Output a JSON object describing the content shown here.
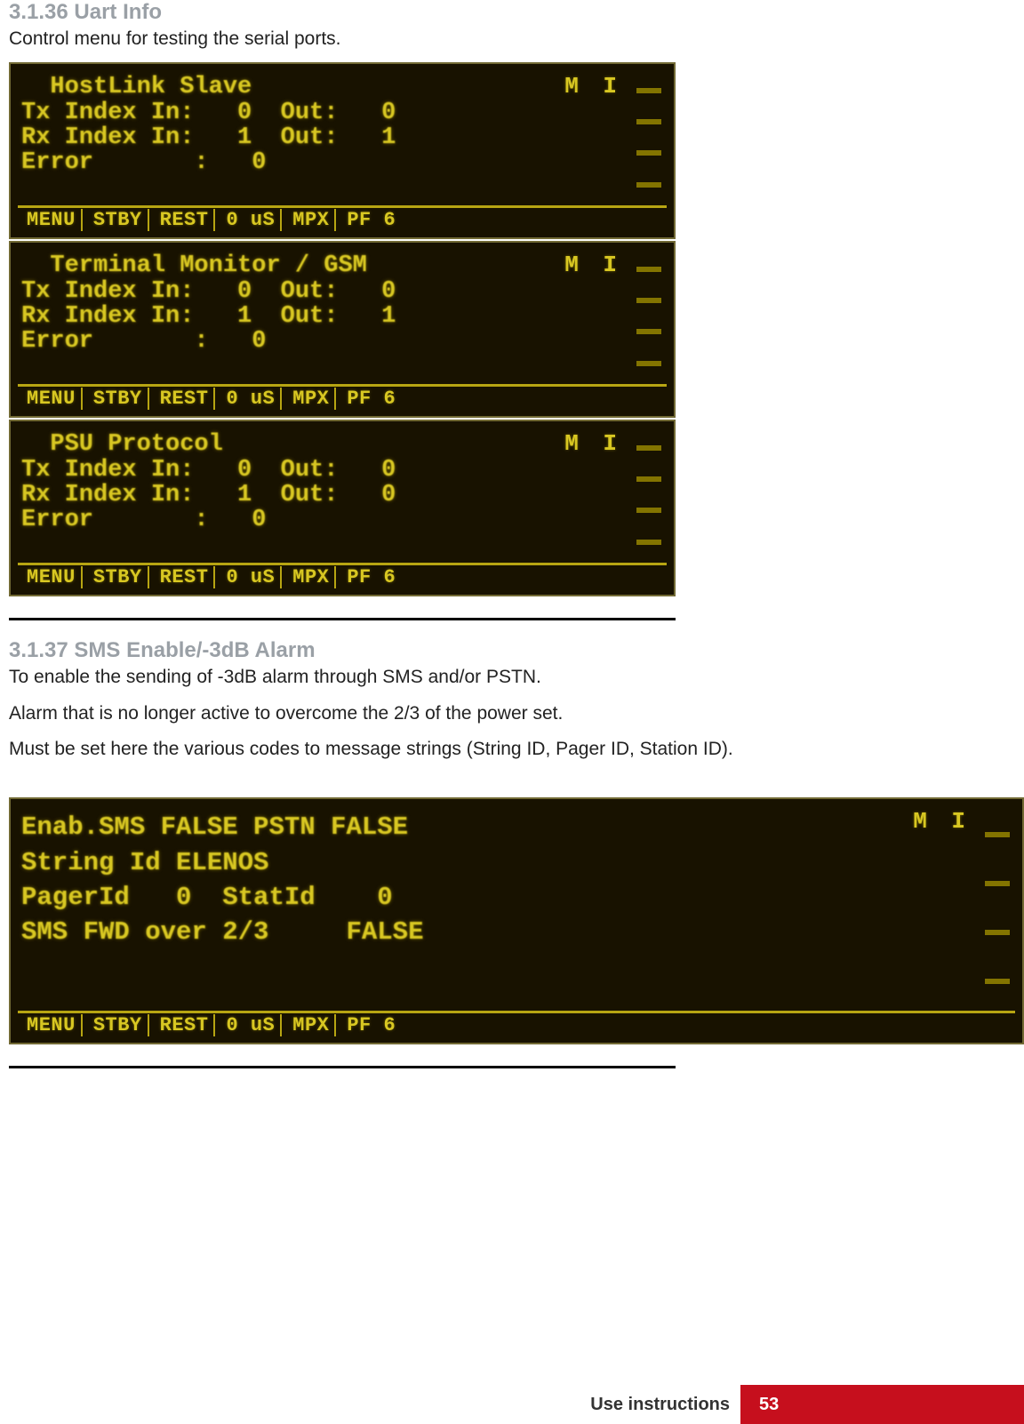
{
  "section1": {
    "heading": "3.1.36 Uart Info",
    "desc": "Control menu for testing the serial ports.",
    "screens": [
      {
        "title": "  HostLink Slave",
        "lines": [
          "Tx Index In:   0  Out:   0",
          "Rx Index In:   1  Out:   1",
          "Error       :   0"
        ]
      },
      {
        "title": "  Terminal Monitor / GSM",
        "lines": [
          "Tx Index In:   0  Out:   0",
          "Rx Index In:   1  Out:   1",
          "Error       :   0"
        ]
      },
      {
        "title": "  PSU Protocol",
        "lines": [
          "Tx Index In:   0  Out:   0",
          "Rx Index In:   1  Out:   0",
          "Error       :   0"
        ]
      }
    ]
  },
  "section2": {
    "heading": "3.1.37 SMS Enable/-3dB Alarm",
    "desc1": "To enable the sending of -3dB alarm through SMS and/or PSTN.",
    "desc2": "Alarm that is no longer active to overcome the 2/3 of the power set.",
    "desc3": "Must be set here the various codes to message strings (String ID, Pager ID, Station ID).",
    "screen": {
      "lines": [
        "Enab.SMS FALSE PSTN FALSE",
        "String Id ELENOS",
        "PagerId   0  StatId    0",
        "SMS FWD over 2/3     FALSE"
      ]
    }
  },
  "lcdMenu": [
    "MENU",
    "STBY",
    "REST",
    "0 uS",
    " MPX",
    "PF 6"
  ],
  "mi": "M I",
  "footer": {
    "label": "Use instructions",
    "page": "53"
  },
  "colors": {
    "lcd_bg": "#181200",
    "lcd_text": "#d8c722",
    "heading_grey": "#9aa0a6",
    "red": "#c60f1d"
  }
}
